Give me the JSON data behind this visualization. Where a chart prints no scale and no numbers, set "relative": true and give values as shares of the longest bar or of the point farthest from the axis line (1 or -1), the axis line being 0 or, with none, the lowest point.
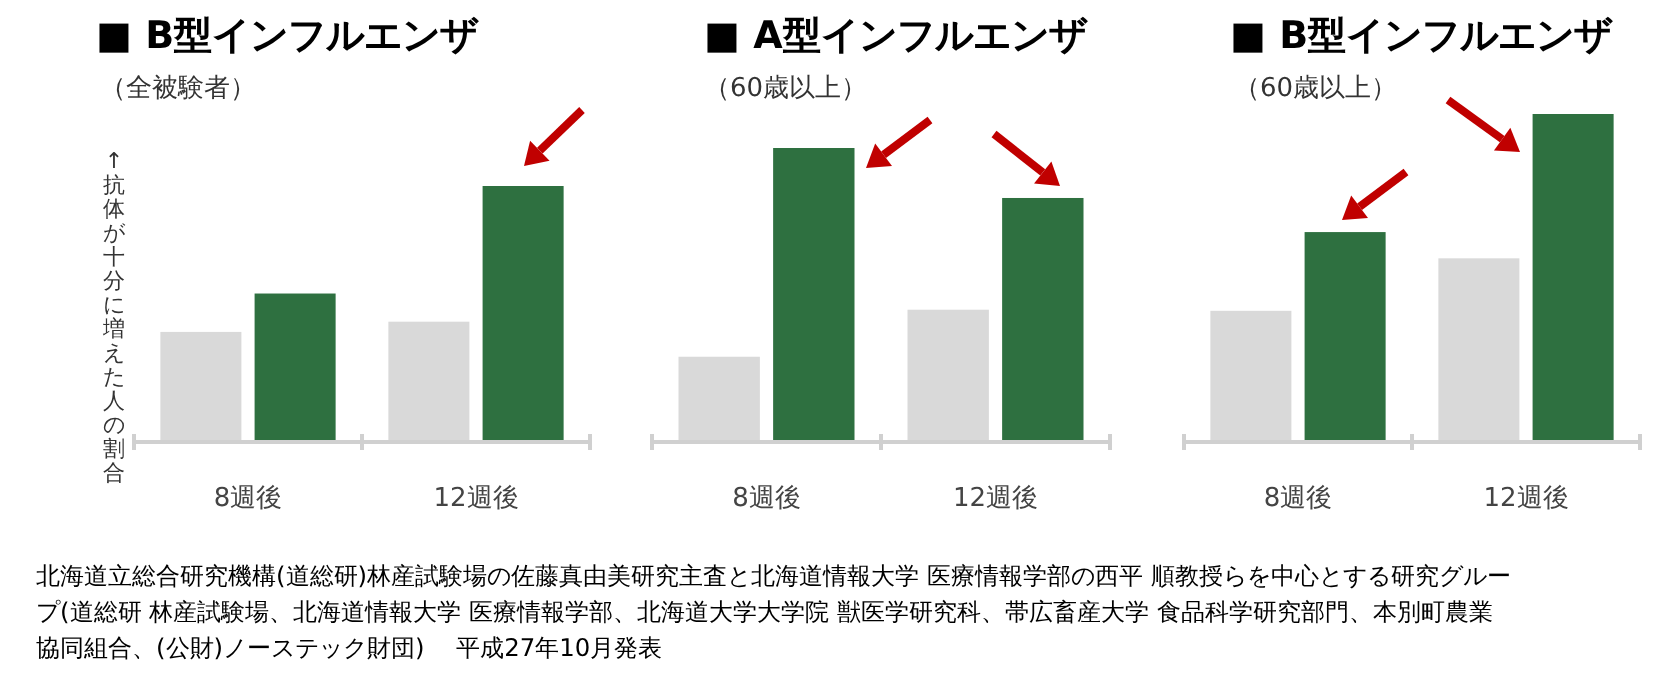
{
  "chart_data": [
    {
      "type": "bar",
      "title": "■ B型インフルエンザ",
      "subtitle": "（全被験者）",
      "ylabel": "↑抗体が十分に増えた人の割合",
      "categories": [
        "8週後",
        "12週後"
      ],
      "relative": true,
      "series": [
        {
          "color": "#d9d9d9",
          "values": [
            0.43,
            0.47
          ]
        },
        {
          "color": "#2e7040",
          "values": [
            0.58,
            1
          ]
        }
      ],
      "annotations": [
        "北海道立総合研究機構(道総研)林産試験場の佐藤真由美研究主査と北海道情報大学 医療情報学部の西平 順教授らを中心とする研究グループ(道総研 林産試験場、北海道情報大学 医療情報学部、北海道大学大学院 獣医学研究科、帯広畜産大学 食品科学研究部門、本別町農業協同組合、(公財)ノーステック財団)　 平成27年10月発表"
      ]
    },
    {
      "type": "bar",
      "title": "■ A型インフルエンザ",
      "subtitle": "（60歳以上）",
      "categories": [
        "8週後",
        "12週後"
      ],
      "relative": true,
      "series": [
        {
          "color": "#d9d9d9",
          "values": [
            0.29,
            0.45
          ]
        },
        {
          "color": "#2e7040",
          "values": [
            1,
            0.83
          ]
        }
      ]
    },
    {
      "type": "bar",
      "title": "■ B型インフルエンザ",
      "subtitle": "（60歳以上）",
      "categories": [
        "8週後",
        "12週後"
      ],
      "relative": true,
      "series": [
        {
          "color": "#d9d9d9",
          "values": [
            0.4,
            0.56
          ]
        },
        {
          "color": "#2e7040",
          "values": [
            0.64,
            1
          ]
        }
      ]
    }
  ]
}
